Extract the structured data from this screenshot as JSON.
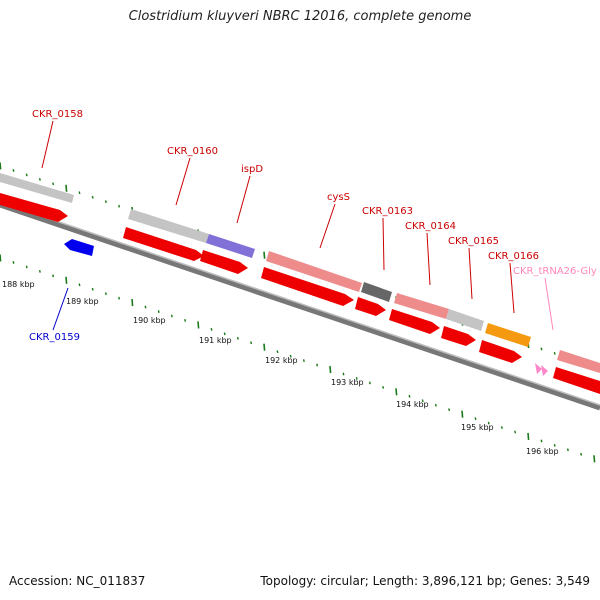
{
  "title": "Clostridium kluyveri NBRC 12016, complete genome",
  "footer": {
    "accession": "Accession: NC_011837",
    "topology": "Topology: circular; Length: 3,896,121 bp; Genes: 3,549"
  },
  "colors": {
    "cds": "#ee0000",
    "gene_grey": "#c4c4c4",
    "gene_pink": "#ee8c8c",
    "gene_purple": "#8070d8",
    "gene_darkgrey": "#666666",
    "gene_orange": "#f59a10",
    "minus_strand": "#0000ee",
    "trna": "#ff88cc",
    "label_forward": "#cc0000",
    "label_reverse": "#0000cc",
    "label_trna": "#ff88bb",
    "tick": "#1a7a1a"
  },
  "kbp_labels": [
    "188 kbp",
    "189 kbp",
    "190 kbp",
    "191 kbp",
    "192 kbp",
    "193 kbp",
    "194 kbp",
    "195 kbp",
    "196 kbp"
  ],
  "gene_labels": [
    {
      "id": "ckr0158",
      "text": "CKR_0158",
      "strand": "forward"
    },
    {
      "id": "ckr0160",
      "text": "CKR_0160",
      "strand": "forward"
    },
    {
      "id": "ispd",
      "text": "ispD",
      "strand": "forward"
    },
    {
      "id": "cyss",
      "text": "cysS",
      "strand": "forward"
    },
    {
      "id": "ckr0163",
      "text": "CKR_0163",
      "strand": "forward"
    },
    {
      "id": "ckr0164",
      "text": "CKR_0164",
      "strand": "forward"
    },
    {
      "id": "ckr0165",
      "text": "CKR_0165",
      "strand": "forward"
    },
    {
      "id": "ckr0166",
      "text": "CKR_0166",
      "strand": "forward"
    },
    {
      "id": "trna26",
      "text": "CKR_tRNA26-Gly",
      "strand": "trna"
    },
    {
      "id": "ckr0159",
      "text": "CKR_0159",
      "strand": "reverse"
    }
  ]
}
